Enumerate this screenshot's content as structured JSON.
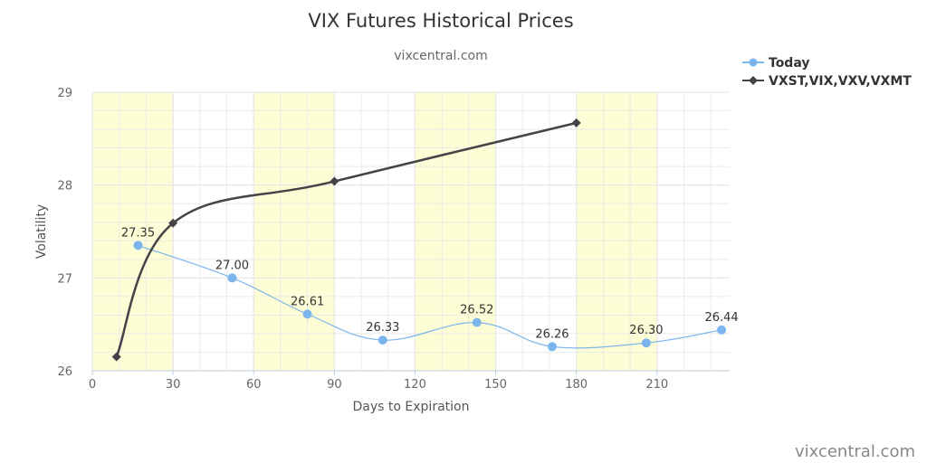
{
  "chart_data": {
    "type": "line",
    "title": "VIX Futures Historical Prices",
    "subtitle": "vixcentral.com",
    "xlabel": "Days to Expiration",
    "ylabel": "Volatility",
    "xlim": [
      0,
      237
    ],
    "ylim": [
      26,
      29
    ],
    "x_ticks": [
      0,
      30,
      60,
      90,
      120,
      150,
      180,
      210
    ],
    "y_ticks": [
      26,
      27,
      28,
      29
    ],
    "grid": true,
    "legend_position": "top-right",
    "plot_bands": [
      [
        0,
        30
      ],
      [
        60,
        90
      ],
      [
        120,
        150
      ],
      [
        180,
        210
      ]
    ],
    "series": [
      {
        "name": "Today",
        "color": "#7cb5ec",
        "marker": "circle",
        "smooth": true,
        "show_labels": true,
        "x": [
          17,
          52,
          80,
          108,
          143,
          171,
          206,
          234
        ],
        "values": [
          27.35,
          27.0,
          26.61,
          26.33,
          26.52,
          26.26,
          26.3,
          26.44
        ],
        "labels": [
          "27.35",
          "27.00",
          "26.61",
          "26.33",
          "26.52",
          "26.26",
          "26.30",
          "26.44"
        ]
      },
      {
        "name": "VXST,VIX,VXV,VXMT",
        "color": "#434348",
        "marker": "diamond",
        "smooth": true,
        "show_labels": false,
        "x": [
          9,
          30,
          90,
          180
        ],
        "values": [
          26.15,
          27.59,
          28.04,
          28.67
        ]
      }
    ]
  },
  "colors": {
    "band": "#fefed6",
    "grid": "#e6e6e6",
    "axis": "#c0d0e0"
  },
  "credit": "vixcentral.com"
}
